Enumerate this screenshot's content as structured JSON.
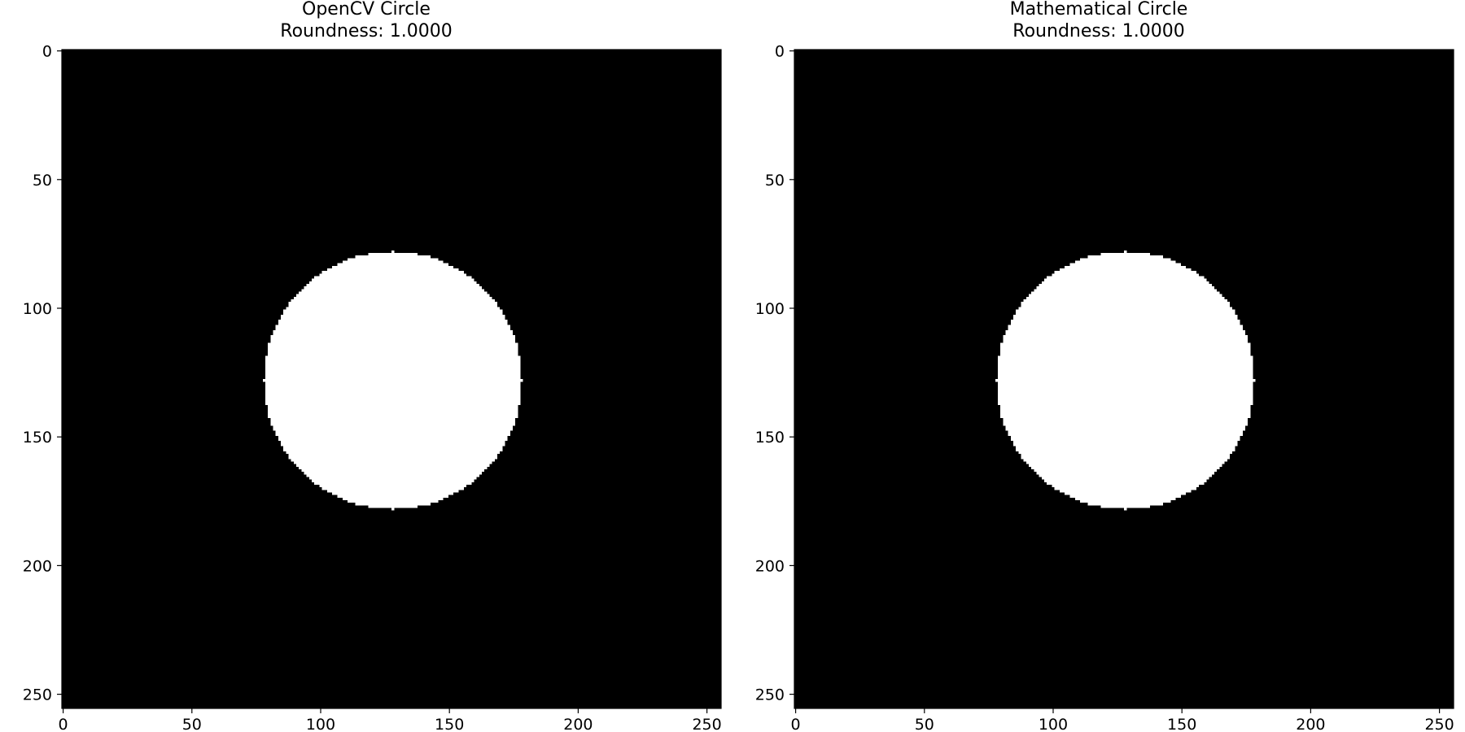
{
  "colors": {
    "background": "#000000",
    "foreground": "#ffffff",
    "axes": "#000000",
    "text": "#000000"
  },
  "chart_data": [
    {
      "type": "heatmap",
      "colormap": "gray",
      "title": [
        "OpenCV Circle",
        "Roundness: 1.0000"
      ],
      "xlim": [
        -0.5,
        255.5
      ],
      "ylim": [
        255.5,
        -0.5
      ],
      "image_size": [
        256,
        256
      ],
      "x_ticks": [
        0,
        50,
        100,
        150,
        200,
        250
      ],
      "y_ticks": [
        0,
        50,
        100,
        150,
        200,
        250
      ],
      "circle": {
        "center_x": 128,
        "center_y": 128,
        "radius": 50,
        "value": 255
      },
      "background_value": 0
    },
    {
      "type": "heatmap",
      "colormap": "gray",
      "title": [
        "Mathematical Circle",
        "Roundness: 1.0000"
      ],
      "xlim": [
        -0.5,
        255.5
      ],
      "ylim": [
        255.5,
        -0.5
      ],
      "image_size": [
        256,
        256
      ],
      "x_ticks": [
        0,
        50,
        100,
        150,
        200,
        250
      ],
      "y_ticks": [
        0,
        50,
        100,
        150,
        200,
        250
      ],
      "circle": {
        "center_x": 128,
        "center_y": 128,
        "radius": 50,
        "value": 255
      },
      "background_value": 0
    }
  ]
}
